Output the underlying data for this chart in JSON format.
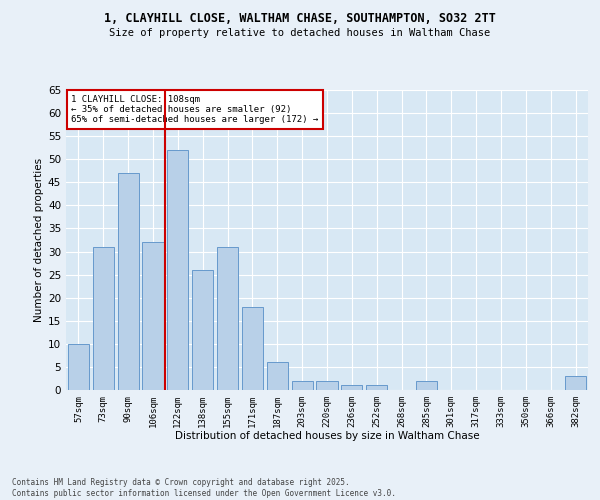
{
  "title1": "1, CLAYHILL CLOSE, WALTHAM CHASE, SOUTHAMPTON, SO32 2TT",
  "title2": "Size of property relative to detached houses in Waltham Chase",
  "xlabel": "Distribution of detached houses by size in Waltham Chase",
  "ylabel": "Number of detached properties",
  "categories": [
    "57sqm",
    "73sqm",
    "90sqm",
    "106sqm",
    "122sqm",
    "138sqm",
    "155sqm",
    "171sqm",
    "187sqm",
    "203sqm",
    "220sqm",
    "236sqm",
    "252sqm",
    "268sqm",
    "285sqm",
    "301sqm",
    "317sqm",
    "333sqm",
    "350sqm",
    "366sqm",
    "382sqm"
  ],
  "values": [
    10,
    31,
    47,
    32,
    52,
    26,
    31,
    18,
    6,
    2,
    2,
    1,
    1,
    0,
    2,
    0,
    0,
    0,
    0,
    0,
    3
  ],
  "bar_color": "#b8d0e8",
  "bar_edge_color": "#6699cc",
  "vline_index": 3.5,
  "vline_color": "#cc0000",
  "annotation_text": "1 CLAYHILL CLOSE: 108sqm\n← 35% of detached houses are smaller (92)\n65% of semi-detached houses are larger (172) →",
  "annotation_box_color": "#ffffff",
  "annotation_box_edge": "#cc0000",
  "background_color": "#e8f0f8",
  "plot_bg_color": "#d8e8f4",
  "ylim": [
    0,
    65
  ],
  "yticks": [
    0,
    5,
    10,
    15,
    20,
    25,
    30,
    35,
    40,
    45,
    50,
    55,
    60,
    65
  ],
  "footer1": "Contains HM Land Registry data © Crown copyright and database right 2025.",
  "footer2": "Contains public sector information licensed under the Open Government Licence v3.0."
}
